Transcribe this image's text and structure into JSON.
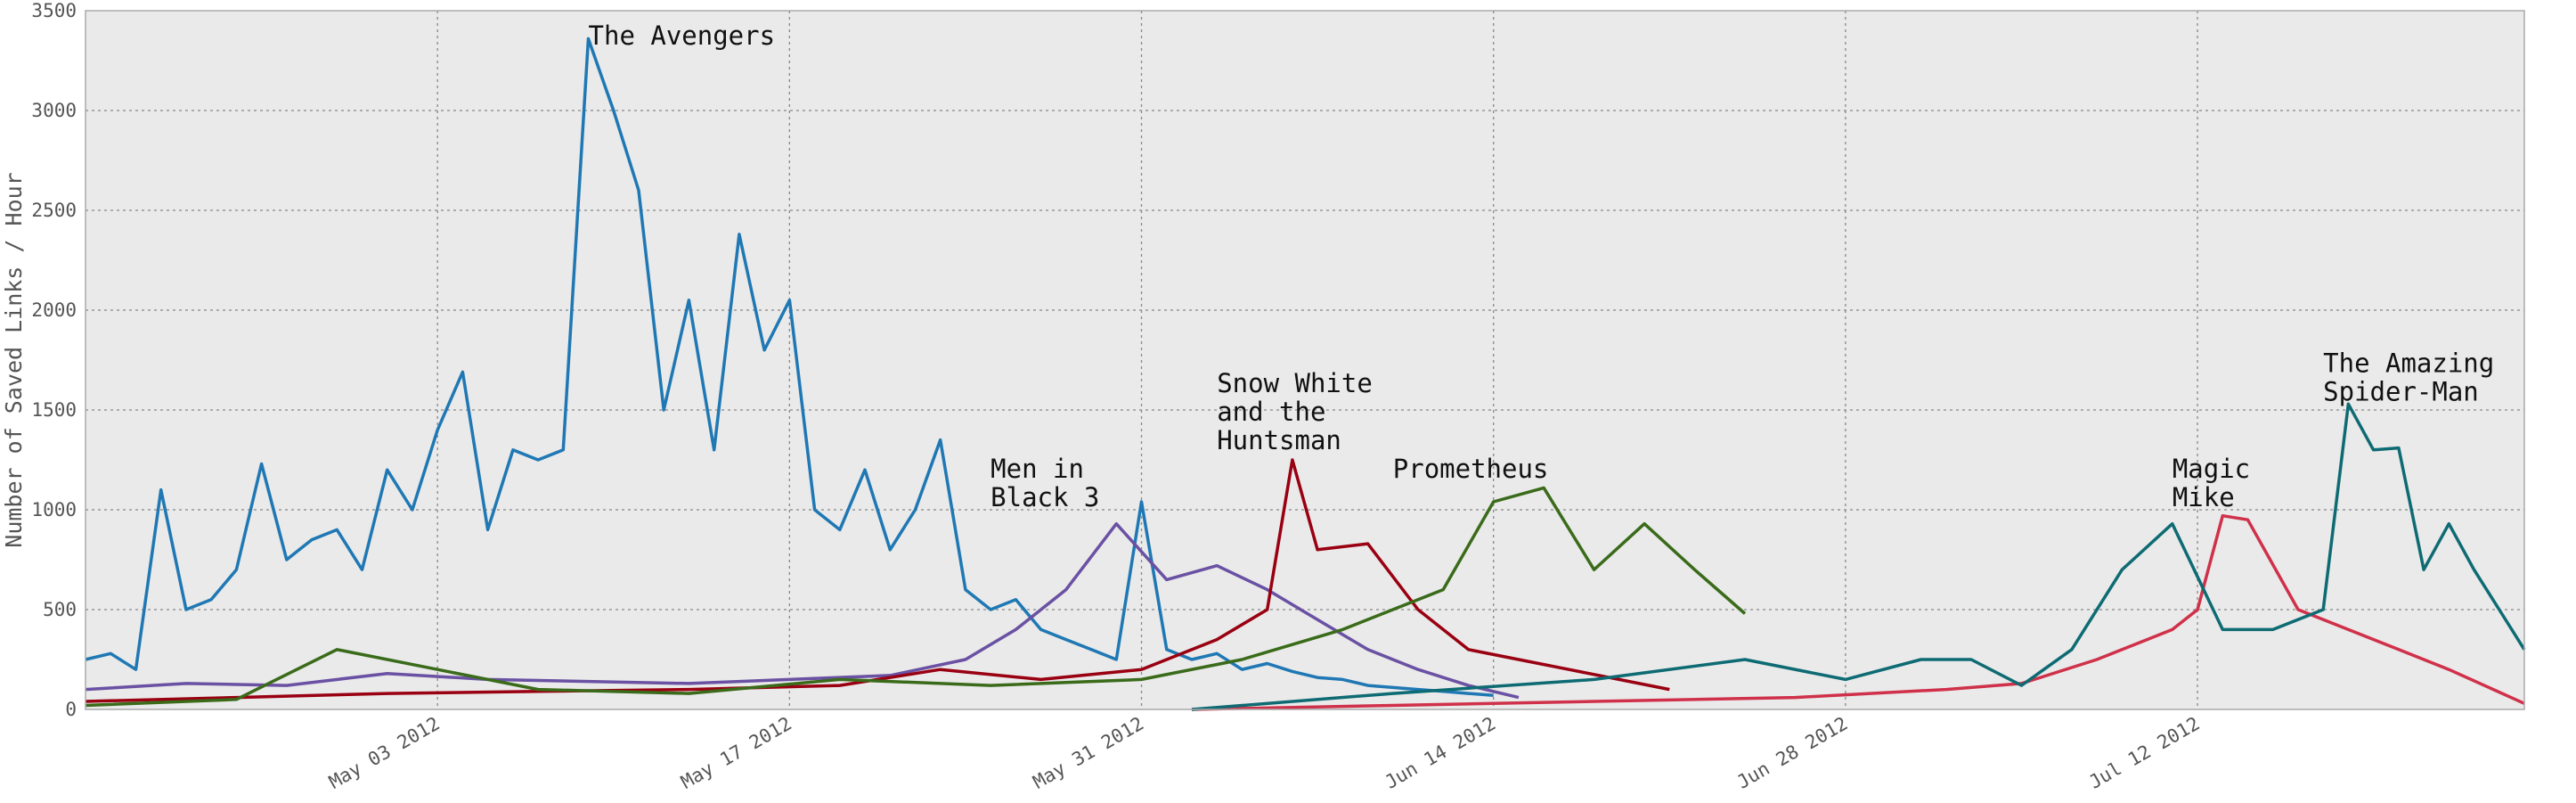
{
  "chart_data": {
    "type": "line",
    "title": "",
    "xlabel": "",
    "ylabel": "Number of Saved Links / Hour",
    "x_range": [
      "2012-04-19",
      "2012-07-25"
    ],
    "ylim": [
      0,
      3500
    ],
    "yticks": [
      0,
      500,
      1000,
      1500,
      2000,
      2500,
      3000,
      3500
    ],
    "xticks": [
      {
        "date": "2012-05-03",
        "label": "May 03 2012"
      },
      {
        "date": "2012-05-17",
        "label": "May 17 2012"
      },
      {
        "date": "2012-05-31",
        "label": "May 31 2012"
      },
      {
        "date": "2012-06-14",
        "label": "Jun 14 2012"
      },
      {
        "date": "2012-06-28",
        "label": "Jun 28 2012"
      },
      {
        "date": "2012-07-12",
        "label": "Jul 12 2012"
      }
    ],
    "grid": true,
    "legend": "none",
    "background": "#eaeaea",
    "series": [
      {
        "name": "The Avengers",
        "color": "#1f78b4",
        "points": [
          [
            "2012-04-19",
            250
          ],
          [
            "2012-04-20",
            280
          ],
          [
            "2012-04-21",
            200
          ],
          [
            "2012-04-22",
            1100
          ],
          [
            "2012-04-23",
            500
          ],
          [
            "2012-04-24",
            550
          ],
          [
            "2012-04-25",
            700
          ],
          [
            "2012-04-26",
            1230
          ],
          [
            "2012-04-27",
            750
          ],
          [
            "2012-04-28",
            850
          ],
          [
            "2012-04-29",
            900
          ],
          [
            "2012-04-30",
            700
          ],
          [
            "2012-05-01",
            1200
          ],
          [
            "2012-05-02",
            1000
          ],
          [
            "2012-05-03",
            1400
          ],
          [
            "2012-05-04",
            1690
          ],
          [
            "2012-05-05",
            900
          ],
          [
            "2012-05-06",
            1300
          ],
          [
            "2012-05-07",
            1250
          ],
          [
            "2012-05-08",
            1300
          ],
          [
            "2012-05-09",
            3360
          ],
          [
            "2012-05-10",
            3000
          ],
          [
            "2012-05-11",
            2600
          ],
          [
            "2012-05-12",
            1500
          ],
          [
            "2012-05-13",
            2050
          ],
          [
            "2012-05-14",
            1300
          ],
          [
            "2012-05-15",
            2380
          ],
          [
            "2012-05-16",
            1800
          ],
          [
            "2012-05-17",
            2050
          ],
          [
            "2012-05-18",
            1000
          ],
          [
            "2012-05-19",
            900
          ],
          [
            "2012-05-20",
            1200
          ],
          [
            "2012-05-21",
            800
          ],
          [
            "2012-05-22",
            1000
          ],
          [
            "2012-05-23",
            1350
          ],
          [
            "2012-05-24",
            600
          ],
          [
            "2012-05-25",
            500
          ],
          [
            "2012-05-26",
            550
          ],
          [
            "2012-05-27",
            400
          ],
          [
            "2012-05-28",
            350
          ],
          [
            "2012-05-29",
            300
          ],
          [
            "2012-05-30",
            250
          ],
          [
            "2012-05-31",
            1040
          ],
          [
            "2012-06-01",
            300
          ],
          [
            "2012-06-02",
            250
          ],
          [
            "2012-06-03",
            280
          ],
          [
            "2012-06-04",
            200
          ],
          [
            "2012-06-05",
            230
          ],
          [
            "2012-06-06",
            190
          ],
          [
            "2012-06-07",
            160
          ],
          [
            "2012-06-08",
            150
          ],
          [
            "2012-06-09",
            120
          ],
          [
            "2012-06-10",
            110
          ],
          [
            "2012-06-11",
            100
          ],
          [
            "2012-06-12",
            90
          ],
          [
            "2012-06-13",
            80
          ],
          [
            "2012-06-14",
            70
          ]
        ]
      },
      {
        "name": "Men in Black 3",
        "color": "#6a51a3",
        "points": [
          [
            "2012-04-19",
            100
          ],
          [
            "2012-04-23",
            130
          ],
          [
            "2012-04-27",
            120
          ],
          [
            "2012-05-01",
            180
          ],
          [
            "2012-05-05",
            150
          ],
          [
            "2012-05-09",
            140
          ],
          [
            "2012-05-13",
            130
          ],
          [
            "2012-05-17",
            150
          ],
          [
            "2012-05-21",
            170
          ],
          [
            "2012-05-24",
            250
          ],
          [
            "2012-05-26",
            400
          ],
          [
            "2012-05-28",
            600
          ],
          [
            "2012-05-30",
            930
          ],
          [
            "2012-06-01",
            650
          ],
          [
            "2012-06-03",
            720
          ],
          [
            "2012-06-05",
            600
          ],
          [
            "2012-06-07",
            450
          ],
          [
            "2012-06-09",
            300
          ],
          [
            "2012-06-11",
            200
          ],
          [
            "2012-06-13",
            120
          ],
          [
            "2012-06-15",
            60
          ]
        ]
      },
      {
        "name": "Snow White and the Huntsman",
        "color": "#990011",
        "points": [
          [
            "2012-04-19",
            40
          ],
          [
            "2012-04-25",
            60
          ],
          [
            "2012-05-01",
            80
          ],
          [
            "2012-05-07",
            90
          ],
          [
            "2012-05-13",
            100
          ],
          [
            "2012-05-19",
            120
          ],
          [
            "2012-05-23",
            200
          ],
          [
            "2012-05-27",
            150
          ],
          [
            "2012-05-31",
            200
          ],
          [
            "2012-06-03",
            350
          ],
          [
            "2012-06-05",
            500
          ],
          [
            "2012-06-06",
            1250
          ],
          [
            "2012-06-07",
            800
          ],
          [
            "2012-06-09",
            830
          ],
          [
            "2012-06-11",
            500
          ],
          [
            "2012-06-13",
            300
          ],
          [
            "2012-06-15",
            250
          ],
          [
            "2012-06-17",
            200
          ],
          [
            "2012-06-19",
            150
          ],
          [
            "2012-06-21",
            100
          ]
        ]
      },
      {
        "name": "Prometheus",
        "color": "#3a6b1a",
        "points": [
          [
            "2012-04-19",
            20
          ],
          [
            "2012-04-25",
            50
          ],
          [
            "2012-04-29",
            300
          ],
          [
            "2012-05-03",
            200
          ],
          [
            "2012-05-07",
            100
          ],
          [
            "2012-05-13",
            80
          ],
          [
            "2012-05-19",
            150
          ],
          [
            "2012-05-25",
            120
          ],
          [
            "2012-05-31",
            150
          ],
          [
            "2012-06-04",
            250
          ],
          [
            "2012-06-08",
            400
          ],
          [
            "2012-06-12",
            600
          ],
          [
            "2012-06-14",
            1040
          ],
          [
            "2012-06-16",
            1110
          ],
          [
            "2012-06-18",
            700
          ],
          [
            "2012-06-20",
            930
          ],
          [
            "2012-06-22",
            700
          ],
          [
            "2012-06-24",
            480
          ]
        ]
      },
      {
        "name": "Magic Mike",
        "color": "#d0314a",
        "points": [
          [
            "2012-06-02",
            0
          ],
          [
            "2012-06-10",
            20
          ],
          [
            "2012-06-18",
            40
          ],
          [
            "2012-06-26",
            60
          ],
          [
            "2012-07-02",
            100
          ],
          [
            "2012-07-05",
            130
          ],
          [
            "2012-07-08",
            250
          ],
          [
            "2012-07-11",
            400
          ],
          [
            "2012-07-12",
            500
          ],
          [
            "2012-07-13",
            970
          ],
          [
            "2012-07-14",
            950
          ],
          [
            "2012-07-16",
            500
          ],
          [
            "2012-07-18",
            400
          ],
          [
            "2012-07-20",
            300
          ],
          [
            "2012-07-22",
            200
          ],
          [
            "2012-07-25",
            30
          ]
        ]
      },
      {
        "name": "The Amazing Spider-Man",
        "color": "#0e6b73",
        "points": [
          [
            "2012-06-02",
            0
          ],
          [
            "2012-06-10",
            80
          ],
          [
            "2012-06-18",
            150
          ],
          [
            "2012-06-24",
            250
          ],
          [
            "2012-06-28",
            150
          ],
          [
            "2012-07-01",
            250
          ],
          [
            "2012-07-03",
            250
          ],
          [
            "2012-07-05",
            120
          ],
          [
            "2012-07-07",
            300
          ],
          [
            "2012-07-09",
            700
          ],
          [
            "2012-07-11",
            930
          ],
          [
            "2012-07-13",
            400
          ],
          [
            "2012-07-15",
            400
          ],
          [
            "2012-07-17",
            500
          ],
          [
            "2012-07-18",
            1530
          ],
          [
            "2012-07-19",
            1300
          ],
          [
            "2012-07-20",
            1310
          ],
          [
            "2012-07-21",
            700
          ],
          [
            "2012-07-22",
            930
          ],
          [
            "2012-07-23",
            700
          ],
          [
            "2012-07-24",
            500
          ],
          [
            "2012-07-25",
            300
          ]
        ]
      }
    ],
    "annotations": [
      {
        "text": [
          "The Avengers"
        ],
        "date": "2012-05-09",
        "y": 3330
      },
      {
        "text": [
          "Men in",
          "Black 3"
        ],
        "date": "2012-05-25",
        "y": 1160
      },
      {
        "text": [
          "Snow White",
          "and the",
          "Huntsman"
        ],
        "date": "2012-06-03",
        "y": 1590
      },
      {
        "text": [
          "Prometheus"
        ],
        "date": "2012-06-10",
        "y": 1160
      },
      {
        "text": [
          "Magic",
          "Mike"
        ],
        "date": "2012-07-11",
        "y": 1160
      },
      {
        "text": [
          "The Amazing",
          "Spider-Man"
        ],
        "date": "2012-07-17",
        "y": 1690
      }
    ]
  }
}
